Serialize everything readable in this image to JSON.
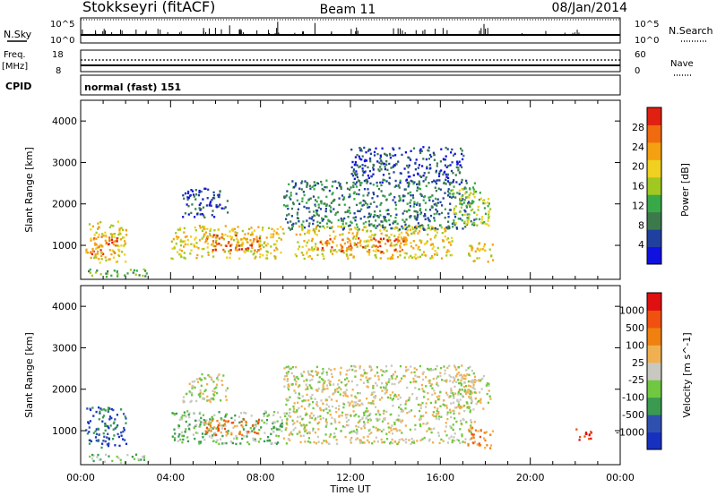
{
  "header": {
    "station": "Stokkseyri (fitACF)",
    "beam": "Beam 11",
    "date": "08/Jan/2014"
  },
  "aux_panels": {
    "nsky_label": "N.Sky",
    "nsky_ticks": [
      "10^5",
      "10^0"
    ],
    "nsearch_label": "N.Search",
    "freq_label": "Freq.",
    "freq_unit": "[MHz]",
    "freq_ticks": [
      "18",
      "8"
    ],
    "nave_ticks": [
      "60",
      "0"
    ],
    "nave_label": "Nave",
    "cpid_label": "CPID",
    "cpid_value": "normal (fast) 151"
  },
  "x_axis": {
    "label": "Time UT",
    "ticks": [
      "00:00",
      "04:00",
      "08:00",
      "12:00",
      "16:00",
      "20:00",
      "00:00"
    ]
  },
  "chart_data": [
    {
      "type": "heatmap",
      "title": "",
      "xlabel": "Time UT",
      "ylabel": "Slant Range [km]",
      "x_range_hours": [
        0,
        24
      ],
      "ylim": [
        180,
        4500
      ],
      "y_ticks": [
        1000,
        2000,
        3000,
        4000
      ],
      "colorbar": {
        "label": "Power [dB]",
        "ticks": [
          "28",
          "24",
          "20",
          "16",
          "12",
          "8",
          "4"
        ],
        "colors": [
          "#1010e0",
          "#2040a0",
          "#3c7a4c",
          "#38a848",
          "#a0c820",
          "#f0d020",
          "#f5a010",
          "#f06a10",
          "#e02010"
        ]
      },
      "regions": [
        {
          "t0": 0.2,
          "t1": 2.0,
          "r0": 600,
          "r1": 1600,
          "level": 5
        },
        {
          "t0": 0.4,
          "t1": 1.6,
          "r0": 800,
          "r1": 1300,
          "level": 7
        },
        {
          "t0": 0.3,
          "t1": 3.0,
          "r0": 250,
          "r1": 450,
          "level": 3
        },
        {
          "t0": 4.0,
          "t1": 9.0,
          "r0": 700,
          "r1": 1500,
          "level": 5
        },
        {
          "t0": 5.5,
          "t1": 8.0,
          "r0": 900,
          "r1": 1300,
          "level": 7
        },
        {
          "t0": 4.5,
          "t1": 6.5,
          "r0": 1700,
          "r1": 2400,
          "level": 1
        },
        {
          "t0": 9.5,
          "t1": 16.5,
          "r0": 700,
          "r1": 1500,
          "level": 5
        },
        {
          "t0": 10.5,
          "t1": 14.5,
          "r0": 850,
          "r1": 1200,
          "level": 7
        },
        {
          "t0": 9.0,
          "t1": 17.5,
          "r0": 1400,
          "r1": 2600,
          "level": 2
        },
        {
          "t0": 16.5,
          "t1": 18.2,
          "r0": 1500,
          "r1": 2400,
          "level": 4
        },
        {
          "t0": 17.2,
          "t1": 18.3,
          "r0": 600,
          "r1": 1100,
          "level": 5
        },
        {
          "t0": 12.0,
          "t1": 17.0,
          "r0": 2500,
          "r1": 3400,
          "level": 1
        }
      ]
    },
    {
      "type": "heatmap",
      "title": "",
      "xlabel": "Time UT",
      "ylabel": "Slant Range [km]",
      "x_range_hours": [
        0,
        24
      ],
      "ylim": [
        180,
        4500
      ],
      "y_ticks": [
        1000,
        2000,
        3000,
        4000
      ],
      "colorbar": {
        "label": "Velocity [m s^-1]",
        "ticks": [
          "1000",
          "500",
          "100",
          "25",
          "-25",
          "-100",
          "-500",
          "-1000"
        ],
        "colors": [
          "#1830c0",
          "#3050b0",
          "#3a9a50",
          "#70c840",
          "#c8c8c0",
          "#f0b050",
          "#f08010",
          "#f05010",
          "#e01010"
        ]
      },
      "regions": [
        {
          "t0": 0.2,
          "t1": 2.0,
          "r0": 600,
          "r1": 1600,
          "level": 1
        },
        {
          "t0": 0.3,
          "t1": 3.0,
          "r0": 250,
          "r1": 450,
          "level": 3
        },
        {
          "t0": 4.0,
          "t1": 9.0,
          "r0": 700,
          "r1": 1500,
          "level": 3
        },
        {
          "t0": 5.5,
          "t1": 8.0,
          "r0": 900,
          "r1": 1300,
          "level": 6
        },
        {
          "t0": 4.5,
          "t1": 6.5,
          "r0": 1700,
          "r1": 2400,
          "level": 4
        },
        {
          "t0": 9.0,
          "t1": 17.5,
          "r0": 700,
          "r1": 2600,
          "level": 4
        },
        {
          "t0": 16.5,
          "t1": 18.2,
          "r0": 1500,
          "r1": 2400,
          "level": 4
        },
        {
          "t0": 17.2,
          "t1": 18.3,
          "r0": 600,
          "r1": 1100,
          "level": 6
        },
        {
          "t0": 22.0,
          "t1": 22.8,
          "r0": 800,
          "r1": 1100,
          "level": 8
        }
      ]
    }
  ]
}
